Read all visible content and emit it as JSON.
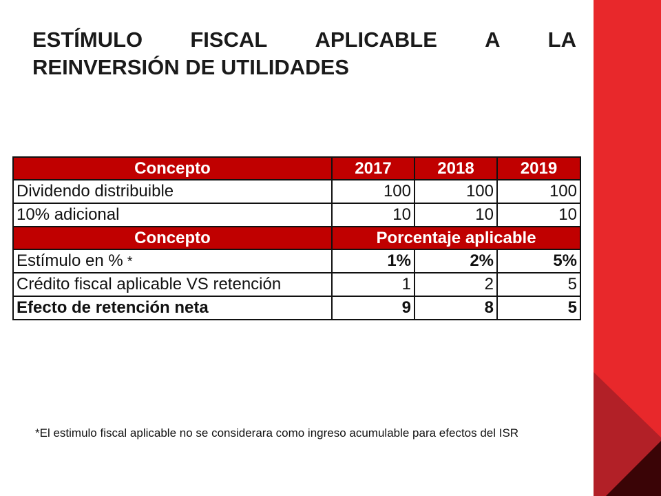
{
  "title": {
    "line1_words": [
      "ESTÍMULO",
      "FISCAL",
      "APLICABLE",
      "A",
      "LA"
    ],
    "line2": "REINVERSIÓN DE UTILIDADES"
  },
  "table": {
    "header1": [
      "Concepto",
      "2017",
      "2018",
      "2019"
    ],
    "rows1": [
      {
        "label": "Dividendo distribuible",
        "values": [
          "100",
          "100",
          "100"
        ]
      },
      {
        "label": "10% adicional",
        "values": [
          "10",
          "10",
          "10"
        ]
      }
    ],
    "header2": {
      "concept": "Concepto",
      "span": "Porcentaje aplicable"
    },
    "rows2": [
      {
        "label": "Estímulo en %",
        "marker": "*",
        "values": [
          "1%",
          "2%",
          "5%"
        ]
      },
      {
        "label": "Crédito fiscal aplicable VS retención",
        "values": [
          "1",
          "2",
          "5"
        ]
      },
      {
        "label": "Efecto de retención neta",
        "values": [
          "9",
          "8",
          "5"
        ]
      }
    ]
  },
  "footnote": "*El estimulo fiscal aplicable no se considerara como ingreso acumulable para efectos del ISR",
  "colors": {
    "accent": "#e8282b",
    "header_fill": "#c00000",
    "dark": "#3a0406"
  }
}
